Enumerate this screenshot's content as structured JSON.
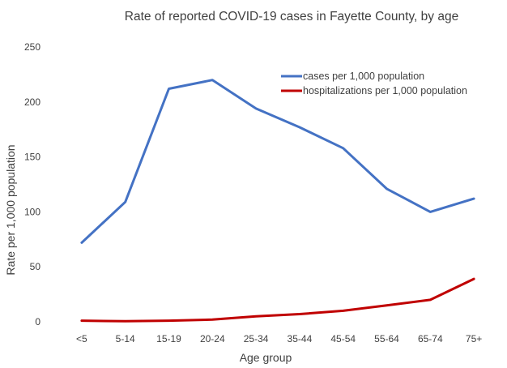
{
  "chart_data": {
    "type": "line",
    "title": "Rate of reported COVID-19 cases in Fayette County, by age",
    "xlabel": "Age group",
    "ylabel": "Rate per 1,000 population",
    "categories": [
      "<5",
      "5-14",
      "15-19",
      "20-24",
      "25-34",
      "35-44",
      "45-54",
      "55-64",
      "65-74",
      "75+"
    ],
    "ylim": [
      0,
      250
    ],
    "yticks": [
      "0",
      "50",
      "100",
      "150",
      "200",
      "250"
    ],
    "grid": false,
    "legend_position": "top-right",
    "series": [
      {
        "name": "cases per 1,000 population",
        "color": "#4472C4",
        "values": [
          72,
          109,
          212,
          220,
          194,
          177,
          158,
          121,
          100,
          112
        ]
      },
      {
        "name": "hospitalizations per 1,000 population",
        "color": "#C00000",
        "values": [
          1,
          0.5,
          1,
          2,
          5,
          7,
          10,
          15,
          20,
          39
        ]
      }
    ]
  }
}
